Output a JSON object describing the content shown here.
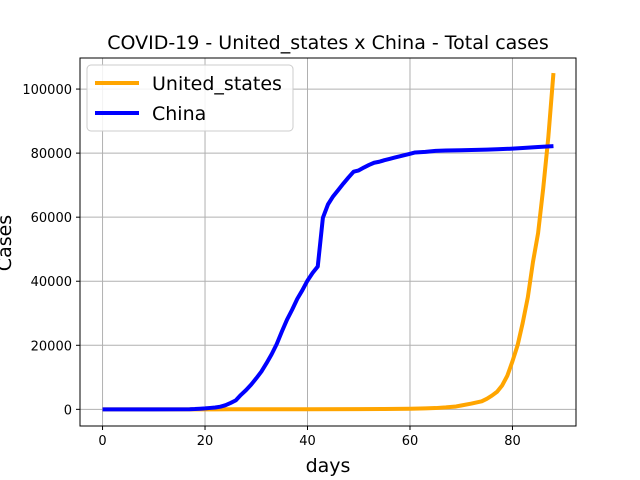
{
  "chart_data": {
    "type": "line",
    "title": "COVID-19 - United_states x China - Total cases",
    "xlabel": "days",
    "ylabel": "Cases",
    "xlim": [
      -4.4,
      92.4
    ],
    "ylim": [
      -5200,
      109700
    ],
    "xticks": [
      0,
      20,
      40,
      60,
      80
    ],
    "yticks": [
      0,
      20000,
      40000,
      60000,
      80000,
      100000
    ],
    "grid": true,
    "legend_position": "top-left",
    "series": [
      {
        "name": "United_states",
        "color": "#ffa500",
        "x": [
          0,
          10,
          20,
          22,
          25,
          30,
          40,
          50,
          55,
          60,
          63,
          65,
          67,
          69,
          70,
          72,
          74,
          75,
          76,
          77,
          78,
          79,
          80,
          81,
          82,
          83,
          84,
          85,
          86,
          87,
          88
        ],
        "y": [
          0,
          0,
          0,
          1,
          10,
          15,
          30,
          60,
          100,
          200,
          300,
          400,
          600,
          900,
          1200,
          1800,
          2500,
          3300,
          4300,
          5500,
          7500,
          10500,
          15000,
          20000,
          27000,
          35000,
          46000,
          55000,
          69000,
          85000,
          105000
        ]
      },
      {
        "name": "China",
        "color": "#0000ff",
        "x": [
          0,
          10,
          17,
          18,
          19,
          20,
          21,
          22,
          23,
          24,
          25,
          26,
          27,
          28,
          29,
          30,
          31,
          32,
          33,
          34,
          35,
          36,
          37,
          38,
          39,
          40,
          41,
          42,
          43,
          44,
          45,
          46,
          47,
          48,
          49,
          50,
          51,
          52,
          53,
          54,
          55,
          56,
          57,
          58,
          59,
          60,
          61,
          63,
          65,
          67,
          70,
          73,
          75,
          77,
          80,
          82,
          85,
          88
        ],
        "y": [
          0,
          0,
          50,
          100,
          200,
          300,
          440,
          570,
          830,
          1300,
          2000,
          2800,
          4500,
          6000,
          7700,
          9700,
          11800,
          14400,
          17200,
          20400,
          24300,
          28000,
          31100,
          34500,
          37200,
          40200,
          42600,
          44600,
          59800,
          64000,
          66500,
          68500,
          70500,
          72400,
          74200,
          74600,
          75500,
          76300,
          77000,
          77300,
          77800,
          78200,
          78600,
          79000,
          79400,
          79800,
          80200,
          80400,
          80700,
          80800,
          80900,
          81000,
          81100,
          81200,
          81400,
          81600,
          81900,
          82200
        ]
      }
    ]
  }
}
